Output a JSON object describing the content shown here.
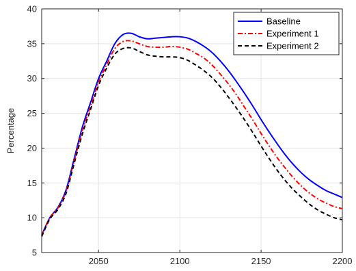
{
  "chart_data": {
    "type": "line",
    "title": "",
    "xlabel": "",
    "ylabel": "Percentage",
    "xlim": [
      2015,
      2200
    ],
    "ylim": [
      5,
      40
    ],
    "xticks": [
      2050,
      2100,
      2150,
      2200
    ],
    "yticks": [
      5,
      10,
      15,
      20,
      25,
      30,
      35,
      40
    ],
    "grid": true,
    "legend_position": "top-right",
    "series": [
      {
        "name": "Baseline",
        "color": "#0000ff",
        "style": "solid",
        "x": [
          2015,
          2020,
          2025,
          2030,
          2035,
          2040,
          2045,
          2050,
          2055,
          2060,
          2065,
          2070,
          2075,
          2080,
          2085,
          2090,
          2095,
          2100,
          2105,
          2110,
          2115,
          2120,
          2125,
          2130,
          2135,
          2140,
          2145,
          2150,
          2155,
          2160,
          2165,
          2170,
          2175,
          2180,
          2185,
          2190,
          2195,
          2200
        ],
        "y": [
          7.5,
          10.0,
          11.5,
          14.0,
          18.5,
          23.0,
          26.5,
          30.0,
          32.5,
          35.0,
          36.3,
          36.5,
          36.0,
          35.7,
          35.8,
          35.9,
          36.0,
          36.0,
          35.8,
          35.3,
          34.6,
          33.7,
          32.5,
          31.1,
          29.5,
          27.8,
          26.0,
          24.1,
          22.3,
          20.6,
          19.0,
          17.6,
          16.4,
          15.4,
          14.6,
          13.9,
          13.4,
          12.9
        ]
      },
      {
        "name": "Experiment 1",
        "color": "#ff0000",
        "style": "dashdot",
        "x": [
          2015,
          2020,
          2025,
          2030,
          2035,
          2040,
          2045,
          2050,
          2055,
          2060,
          2065,
          2070,
          2075,
          2080,
          2085,
          2090,
          2095,
          2100,
          2105,
          2110,
          2115,
          2120,
          2125,
          2130,
          2135,
          2140,
          2145,
          2150,
          2155,
          2160,
          2165,
          2170,
          2175,
          2180,
          2185,
          2190,
          2195,
          2200
        ],
        "y": [
          7.5,
          10.0,
          11.4,
          13.8,
          18.2,
          22.5,
          26.0,
          29.5,
          32.0,
          34.3,
          35.3,
          35.4,
          35.0,
          34.6,
          34.5,
          34.5,
          34.6,
          34.5,
          34.2,
          33.6,
          32.9,
          31.9,
          30.6,
          29.2,
          27.6,
          25.8,
          24.0,
          22.1,
          20.3,
          18.6,
          17.1,
          15.7,
          14.5,
          13.5,
          12.7,
          12.1,
          11.6,
          11.3
        ]
      },
      {
        "name": "Experiment 2",
        "color": "#000000",
        "style": "dashed",
        "x": [
          2015,
          2020,
          2025,
          2030,
          2035,
          2040,
          2045,
          2050,
          2055,
          2060,
          2065,
          2070,
          2075,
          2080,
          2085,
          2090,
          2095,
          2100,
          2105,
          2110,
          2115,
          2120,
          2125,
          2130,
          2135,
          2140,
          2145,
          2150,
          2155,
          2160,
          2165,
          2170,
          2175,
          2180,
          2185,
          2190,
          2195,
          2200
        ],
        "y": [
          7.3,
          9.8,
          11.2,
          13.5,
          17.8,
          22.0,
          25.5,
          29.0,
          31.5,
          33.5,
          34.3,
          34.4,
          33.9,
          33.4,
          33.2,
          33.1,
          33.1,
          33.0,
          32.6,
          31.9,
          31.1,
          30.1,
          28.8,
          27.3,
          25.7,
          24.0,
          22.2,
          20.3,
          18.5,
          16.8,
          15.3,
          14.0,
          12.9,
          11.9,
          11.1,
          10.5,
          10.0,
          9.7
        ]
      }
    ]
  }
}
